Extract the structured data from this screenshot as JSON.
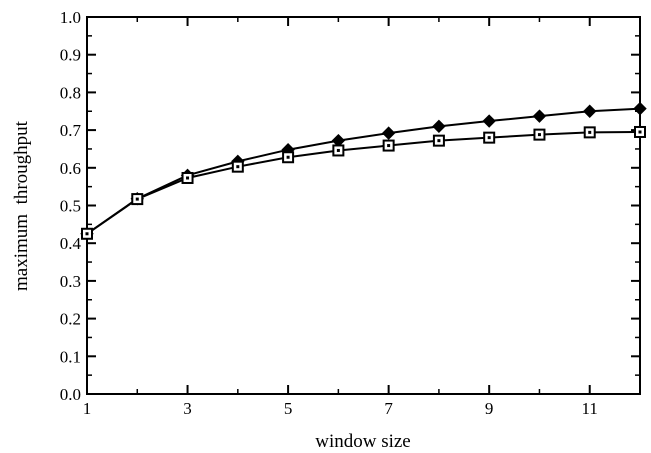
{
  "chart_data": {
    "type": "line",
    "xlabel": "window size",
    "ylabel": "maximum  throughput",
    "xlim": [
      1,
      12
    ],
    "ylim": [
      0.0,
      1.0
    ],
    "x_ticks": [
      1,
      3,
      5,
      7,
      9,
      11
    ],
    "x_tick_labels": [
      "1",
      "3",
      "5",
      "7",
      "9",
      "11"
    ],
    "y_ticks": [
      0.0,
      0.1,
      0.2,
      0.3,
      0.4,
      0.5,
      0.6,
      0.7,
      0.8,
      0.9,
      1.0
    ],
    "y_tick_labels": [
      "0.0",
      "0.1",
      "0.2",
      "0.3",
      "0.4",
      "0.5",
      "0.6",
      "0.7",
      "0.8",
      "0.9",
      "1.0"
    ],
    "grid": false,
    "x": [
      1,
      2,
      3,
      4,
      5,
      6,
      7,
      8,
      9,
      10,
      11,
      12
    ],
    "series": [
      {
        "marker": "filled-diamond",
        "color": "#000000",
        "values": [
          0.425,
          0.518,
          0.58,
          0.617,
          0.648,
          0.672,
          0.692,
          0.71,
          0.724,
          0.737,
          0.75,
          0.757
        ]
      },
      {
        "marker": "open-square",
        "color": "#000000",
        "values": [
          0.425,
          0.517,
          0.573,
          0.603,
          0.628,
          0.646,
          0.659,
          0.672,
          0.68,
          0.688,
          0.694,
          0.695
        ]
      }
    ]
  }
}
